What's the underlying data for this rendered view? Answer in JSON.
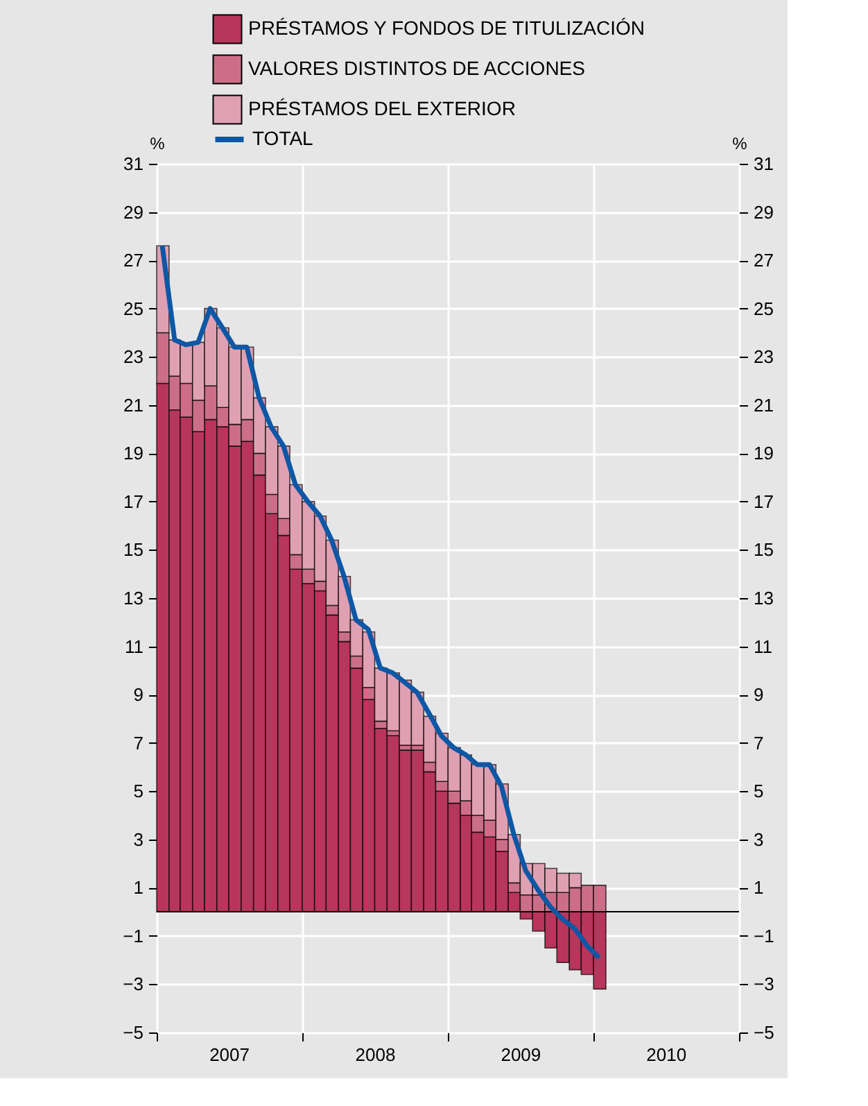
{
  "chart_data": {
    "type": "bar",
    "stacked": true,
    "x": [
      "2007-01-15",
      "2007-02-15",
      "2007-03-15",
      "2007-04-15",
      "2007-05-15",
      "2007-06-15",
      "2007-07-15",
      "2007-08-15",
      "2007-09-15",
      "2007-10-15",
      "2007-11-15",
      "2007-12-15",
      "2008-01-15",
      "2008-02-15",
      "2008-03-15",
      "2008-04-15",
      "2008-05-15",
      "2008-06-15",
      "2008-07-15",
      "2008-08-15",
      "2008-09-15",
      "2008-10-15",
      "2008-11-15",
      "2008-12-15",
      "2009-01-15",
      "2009-02-15",
      "2009-03-15",
      "2009-04-15",
      "2009-05-15",
      "2009-06-15",
      "2009-07-15",
      "2009-08-15",
      "2009-09-15",
      "2009-10-15",
      "2009-11-15",
      "2009-12-15",
      "2010-01-15"
    ],
    "series": [
      {
        "name": "PRÉSTAMOS Y FONDOS DE TITULIZACIÓN",
        "color": "#b8355c",
        "values": [
          21.9,
          20.8,
          20.5,
          19.9,
          20.4,
          20.1,
          19.3,
          19.5,
          18.1,
          16.5,
          15.6,
          14.2,
          13.6,
          13.3,
          12.3,
          11.2,
          10.1,
          8.8,
          7.6,
          7.3,
          6.7,
          6.7,
          5.8,
          5.0,
          4.5,
          4.0,
          3.3,
          3.1,
          2.5,
          0.8,
          -0.3,
          -0.8,
          -1.5,
          -2.1,
          -2.4,
          -2.6,
          -3.2
        ]
      },
      {
        "name": "VALORES DISTINTOS DE ACCIONES",
        "color": "#cc6e88",
        "values": [
          2.1,
          1.4,
          1.4,
          1.3,
          1.4,
          0.8,
          0.9,
          0.9,
          0.9,
          0.8,
          0.7,
          0.6,
          0.6,
          0.4,
          0.4,
          0.4,
          0.5,
          0.5,
          0.3,
          0.2,
          0.2,
          0.2,
          0.4,
          0.4,
          0.5,
          0.6,
          0.7,
          0.7,
          0.5,
          0.4,
          0.7,
          0.7,
          0.8,
          0.8,
          1.0,
          1.1,
          1.1
        ]
      },
      {
        "name": "PRÉSTAMOS DEL EXTERIOR",
        "color": "#e0a0b3",
        "values": [
          3.6,
          1.5,
          1.6,
          2.4,
          3.2,
          3.3,
          3.2,
          3.0,
          2.3,
          2.8,
          3.0,
          2.9,
          2.8,
          2.7,
          2.7,
          2.3,
          1.5,
          2.3,
          2.2,
          2.4,
          2.7,
          2.2,
          1.9,
          2.0,
          1.8,
          1.9,
          2.1,
          2.3,
          2.3,
          2.0,
          1.3,
          1.3,
          1.0,
          0.8,
          0.6,
          null,
          null
        ]
      },
      {
        "name": "TOTAL",
        "type": "line",
        "color": "#0d57a5",
        "values": [
          27.6,
          23.7,
          23.5,
          23.6,
          25.0,
          24.2,
          23.4,
          23.4,
          21.3,
          20.1,
          19.3,
          17.7,
          17.0,
          16.4,
          15.4,
          13.9,
          12.1,
          11.7,
          10.1,
          9.9,
          9.5,
          9.1,
          8.2,
          7.3,
          6.8,
          6.5,
          6.1,
          6.1,
          5.2,
          3.2,
          1.7,
          0.9,
          0.2,
          -0.3,
          -0.7,
          -1.4,
          -1.9
        ]
      }
    ],
    "ylabel": "%",
    "y2label": "%",
    "ylim": [
      -5,
      31
    ],
    "yticks": [
      -5,
      -3,
      -1,
      1,
      3,
      5,
      7,
      9,
      11,
      13,
      15,
      17,
      19,
      21,
      23,
      25,
      27,
      29,
      31
    ],
    "y2lim": [
      -5,
      31
    ],
    "y2ticks": [
      -5,
      -3,
      -1,
      1,
      3,
      5,
      7,
      9,
      11,
      13,
      15,
      17,
      19,
      21,
      23,
      25,
      27,
      29,
      31
    ],
    "xlim": [
      "2007-01",
      "2011-01"
    ],
    "xticks": [
      {
        "value": "2007-01",
        "label": null
      },
      {
        "value": "2007-07",
        "label": "2007"
      },
      {
        "value": "2008-01",
        "label": null
      },
      {
        "value": "2008-07",
        "label": "2008"
      },
      {
        "value": "2009-01",
        "label": null
      },
      {
        "value": "2009-07",
        "label": "2009"
      },
      {
        "value": "2010-01",
        "label": null
      },
      {
        "value": "2010-07",
        "label": "2010"
      },
      {
        "value": "2011-01",
        "label": null
      }
    ],
    "ref_lines": [
      {
        "axis": "y",
        "value": 0,
        "color": "#000000"
      }
    ],
    "grid": true,
    "legend": "top"
  }
}
